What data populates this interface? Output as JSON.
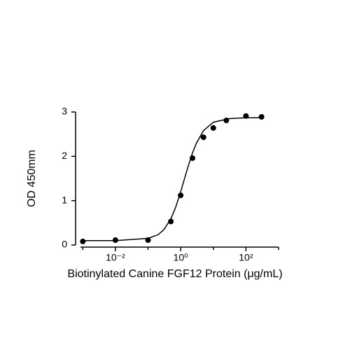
{
  "chart_data": {
    "type": "scatter",
    "x_label": "Biotinylated Canine FGF12 Protein (μg/mL)",
    "y_label": "OD 450mm",
    "xscale": "log",
    "xlim": [
      0.00085,
      1000
    ],
    "ylim": [
      0,
      3
    ],
    "xticks": [
      {
        "value": 0.01,
        "label": "10⁻²"
      },
      {
        "value": 1,
        "label": "10⁰"
      },
      {
        "value": 100,
        "label": "10²"
      }
    ],
    "xminorticks": [
      0.001,
      0.1,
      10,
      1000
    ],
    "yticks": [
      0,
      1,
      2,
      3
    ],
    "series": [
      {
        "color": "#000000",
        "x": [
          0.001,
          0.01,
          0.1,
          0.5,
          1,
          2.3,
          5,
          10,
          25,
          100,
          300
        ],
        "values": [
          0.08,
          0.11,
          0.11,
          0.53,
          1.12,
          1.96,
          2.43,
          2.64,
          2.81,
          2.91,
          2.89
        ],
        "errors": [
          null,
          null,
          null,
          null,
          0.05,
          null,
          null,
          null,
          null,
          null,
          null
        ]
      }
    ],
    "fit": {
      "color": "#000000",
      "x": [
        0.001,
        0.01,
        0.1,
        0.2,
        0.3,
        0.5,
        0.7,
        1,
        1.3,
        1.7,
        2.3,
        3,
        5,
        10,
        30,
        100,
        300
      ],
      "values": [
        0.1,
        0.1,
        0.15,
        0.23,
        0.34,
        0.59,
        0.85,
        1.2,
        1.49,
        1.78,
        2.08,
        2.29,
        2.58,
        2.77,
        2.85,
        2.87,
        2.87
      ]
    }
  }
}
